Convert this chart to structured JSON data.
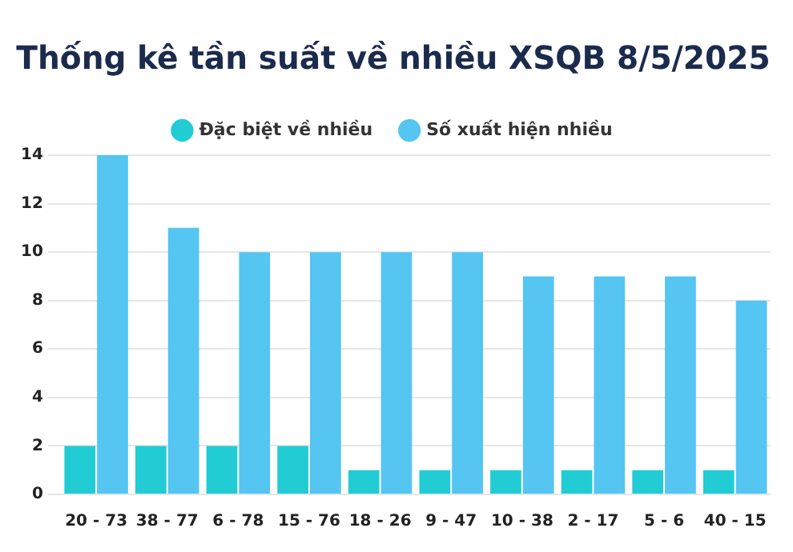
{
  "chart_data": {
    "type": "bar",
    "title": "Thống kê tần suất về nhiều XSQB 8/5/2025",
    "categories": [
      "20 - 73",
      "38 - 77",
      "6 - 78",
      "15 - 76",
      "18 - 26",
      "9 - 47",
      "10 - 38",
      "2 - 17",
      "5 - 6",
      "40 - 15"
    ],
    "series": [
      {
        "name": "Đặc biệt về nhiều",
        "color": "#22ccd4",
        "values": [
          2,
          2,
          2,
          2,
          1,
          1,
          1,
          1,
          1,
          1
        ]
      },
      {
        "name": "Số xuất hiện nhiều",
        "color": "#55c5f2",
        "values": [
          14,
          11,
          10,
          10,
          10,
          10,
          9,
          9,
          9,
          8
        ]
      }
    ],
    "ylim": [
      0,
      14
    ],
    "yticks": [
      0,
      2,
      4,
      6,
      8,
      10,
      12,
      14
    ],
    "grid": "y",
    "legend": "top"
  }
}
